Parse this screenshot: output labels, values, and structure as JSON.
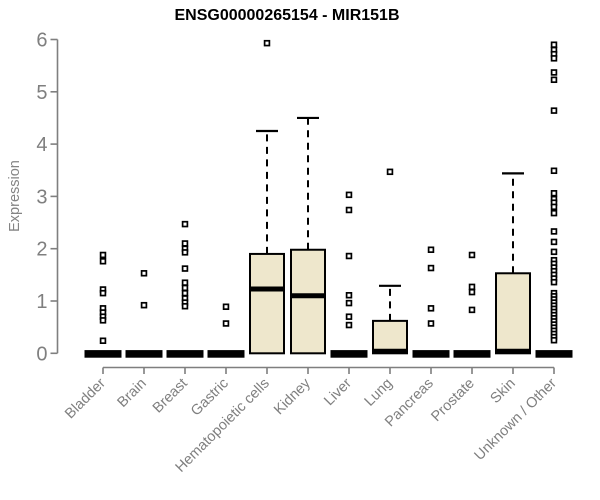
{
  "chart_data": {
    "type": "boxplot",
    "title": "ENSG00000265154 - MIR151B",
    "ylabel": "Expression",
    "xlabel": "",
    "ylim": [
      0,
      6
    ],
    "yticks": [
      0,
      1,
      2,
      3,
      4,
      5,
      6
    ],
    "grid": false,
    "legend": "none",
    "box_fill": "#EEE7CC",
    "box_border": "#000000",
    "median_color": "#000000",
    "outlier_color": "#000000",
    "axis_color": "#7f7f7f",
    "tick_label_color": "#7f7f7f",
    "title_color": "#000000",
    "background_color": "#ffffff",
    "categories": [
      "Bladder",
      "Brain",
      "Breast",
      "Gastric",
      "Hematopoietic cells",
      "Kidney",
      "Liver",
      "Lung",
      "Pancreas",
      "Prostate",
      "Skin",
      "Unknown / Other"
    ],
    "series": [
      {
        "category": "Bladder",
        "whisker_low": 0,
        "q1": 0,
        "median": 0,
        "q3": 0,
        "whisker_high": 0,
        "outliers": [
          1.88,
          1.76,
          1.22,
          1.15,
          0.86,
          0.78,
          0.7,
          0.63,
          0.24
        ]
      },
      {
        "category": "Brain",
        "whisker_low": 0,
        "q1": 0,
        "median": 0,
        "q3": 0,
        "whisker_high": 0,
        "outliers": [
          1.53,
          0.92
        ]
      },
      {
        "category": "Breast",
        "whisker_low": 0,
        "q1": 0,
        "median": 0,
        "q3": 0,
        "whisker_high": 0,
        "outliers": [
          2.47,
          2.1,
          2.0,
          1.93,
          1.62,
          1.35,
          1.25,
          1.15,
          1.05,
          0.97,
          0.9
        ]
      },
      {
        "category": "Gastric",
        "whisker_low": 0,
        "q1": 0,
        "median": 0,
        "q3": 0,
        "whisker_high": 0,
        "outliers": [
          0.89,
          0.57
        ]
      },
      {
        "category": "Hematopoietic cells",
        "whisker_low": 0,
        "q1": 0,
        "median": 1.23,
        "q3": 1.9,
        "whisker_high": 4.25,
        "outliers": [
          5.93
        ]
      },
      {
        "category": "Kidney",
        "whisker_low": 0,
        "q1": 0,
        "median": 1.1,
        "q3": 1.98,
        "whisker_high": 4.5,
        "outliers": []
      },
      {
        "category": "Liver",
        "whisker_low": 0,
        "q1": 0,
        "median": 0,
        "q3": 0,
        "whisker_high": 0,
        "outliers": [
          3.03,
          2.74,
          1.86,
          1.11,
          0.96,
          0.7,
          0.54
        ]
      },
      {
        "category": "Lung",
        "whisker_low": 0,
        "q1": 0,
        "median": 0,
        "q3": 0.62,
        "whisker_high": 1.29,
        "outliers": [
          3.47
        ]
      },
      {
        "category": "Pancreas",
        "whisker_low": 0,
        "q1": 0,
        "median": 0,
        "q3": 0,
        "whisker_high": 0,
        "outliers": [
          1.98,
          1.63,
          0.86,
          0.57
        ]
      },
      {
        "category": "Prostate",
        "whisker_low": 0,
        "q1": 0,
        "median": 0,
        "q3": 0,
        "whisker_high": 0,
        "outliers": [
          1.88,
          1.27,
          1.17,
          0.83
        ]
      },
      {
        "category": "Skin",
        "whisker_low": 0,
        "q1": 0,
        "median": 0,
        "q3": 1.53,
        "whisker_high": 3.44,
        "outliers": []
      },
      {
        "category": "Unknown / Other",
        "whisker_low": 0,
        "q1": 0,
        "median": 0,
        "q3": 0,
        "whisker_high": 0,
        "outliers": [
          5.9,
          5.8,
          5.72,
          5.64,
          5.37,
          5.23,
          4.64,
          3.49,
          3.06,
          2.95,
          2.88,
          2.8,
          2.68,
          2.33,
          2.13,
          1.94,
          1.78,
          1.71,
          1.64,
          1.57,
          1.5,
          1.43,
          1.36,
          1.15,
          1.09,
          1.03,
          0.97,
          0.91,
          0.85,
          0.79,
          0.73,
          0.67,
          0.61,
          0.55,
          0.49,
          0.43,
          0.37,
          0.31,
          0.25
        ]
      }
    ]
  }
}
